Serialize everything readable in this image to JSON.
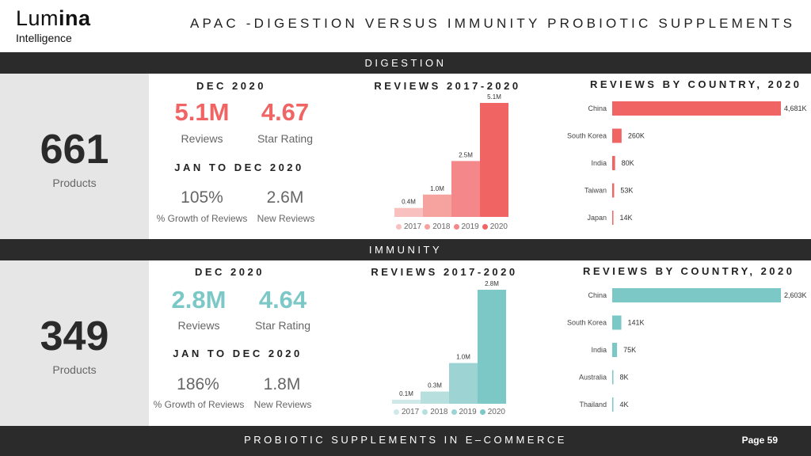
{
  "logo": {
    "word_light": "Lum",
    "word_bold": "ina",
    "subtitle": "Intelligence"
  },
  "title": "APAC -DIGESTION VERSUS IMMUNITY PROBIOTIC SUPPLEMENTS",
  "footer": {
    "text": "PROBIOTIC SUPPLEMENTS IN E–COMMERCE",
    "page": "Page 59"
  },
  "colors": {
    "digestion": [
      "#f8c0be",
      "#f6a3a0",
      "#f4878a",
      "#f06464"
    ],
    "immunity": [
      "#cfe9e8",
      "#b6dfde",
      "#9dd4d3",
      "#7cc8c7"
    ]
  },
  "digestion": {
    "band": "DIGESTION",
    "products_count": "661",
    "products_label": "Products",
    "dec_heading": "DEC 2020",
    "reviews_value": "5.1M",
    "reviews_label": "Reviews",
    "rating_value": "4.67",
    "rating_label": "Star Rating",
    "period_heading": "JAN TO DEC 2020",
    "growth_value": "105%",
    "growth_label": "% Growth of Reviews",
    "new_reviews_value": "2.6M",
    "new_reviews_label": "New Reviews",
    "reviews_chart_title": "REVIEWS 2017-2020",
    "country_chart_title": "REVIEWS BY COUNTRY, 2020"
  },
  "immunity": {
    "band": "IMMUNITY",
    "products_count": "349",
    "products_label": "Products",
    "dec_heading": "DEC 2020",
    "reviews_value": "2.8M",
    "reviews_label": "Reviews",
    "rating_value": "4.64",
    "rating_label": "Star Rating",
    "period_heading": "JAN TO DEC 2020",
    "growth_value": "186%",
    "growth_label": "% Growth of Reviews",
    "new_reviews_value": "1.8M",
    "new_reviews_label": "New Reviews",
    "reviews_chart_title": "REVIEWS 2017-2020",
    "country_chart_title": "REVIEWS BY COUNTRY, 2020"
  },
  "chart_data": [
    {
      "id": "digestion-reviews",
      "type": "bar",
      "title": "REVIEWS 2017-2020",
      "categories": [
        "2017",
        "2018",
        "2019",
        "2020"
      ],
      "values": [
        0.4,
        1.0,
        2.5,
        5.1
      ],
      "labels": [
        "0.4M",
        "1.0M",
        "2.5M",
        "5.1M"
      ],
      "legend": [
        "2017",
        "2018",
        "2019",
        "2020"
      ],
      "legend_position": "bottom"
    },
    {
      "id": "digestion-country",
      "type": "bar",
      "title": "REVIEWS BY COUNTRY, 2020",
      "categories": [
        "China",
        "South Korea",
        "India",
        "Taiwan",
        "Japan"
      ],
      "values": [
        4681,
        260,
        80,
        53,
        14
      ],
      "labels": [
        "4,681K",
        "260K",
        "80K",
        "53K",
        "14K"
      ]
    },
    {
      "id": "immunity-reviews",
      "type": "bar",
      "title": "REVIEWS 2017-2020",
      "categories": [
        "2017",
        "2018",
        "2019",
        "2020"
      ],
      "values": [
        0.1,
        0.3,
        1.0,
        2.8
      ],
      "labels": [
        "0.1M",
        "0.3M",
        "1.0M",
        "2.8M"
      ],
      "legend": [
        "2017",
        "2018",
        "2019",
        "2020"
      ],
      "legend_position": "bottom"
    },
    {
      "id": "immunity-country",
      "type": "bar",
      "title": "REVIEWS BY COUNTRY, 2020",
      "categories": [
        "China",
        "South Korea",
        "India",
        "Australia",
        "Thailand"
      ],
      "values": [
        2603,
        141,
        75,
        8,
        4
      ],
      "labels": [
        "2,603K",
        "141K",
        "75K",
        "8K",
        "4K"
      ]
    }
  ]
}
